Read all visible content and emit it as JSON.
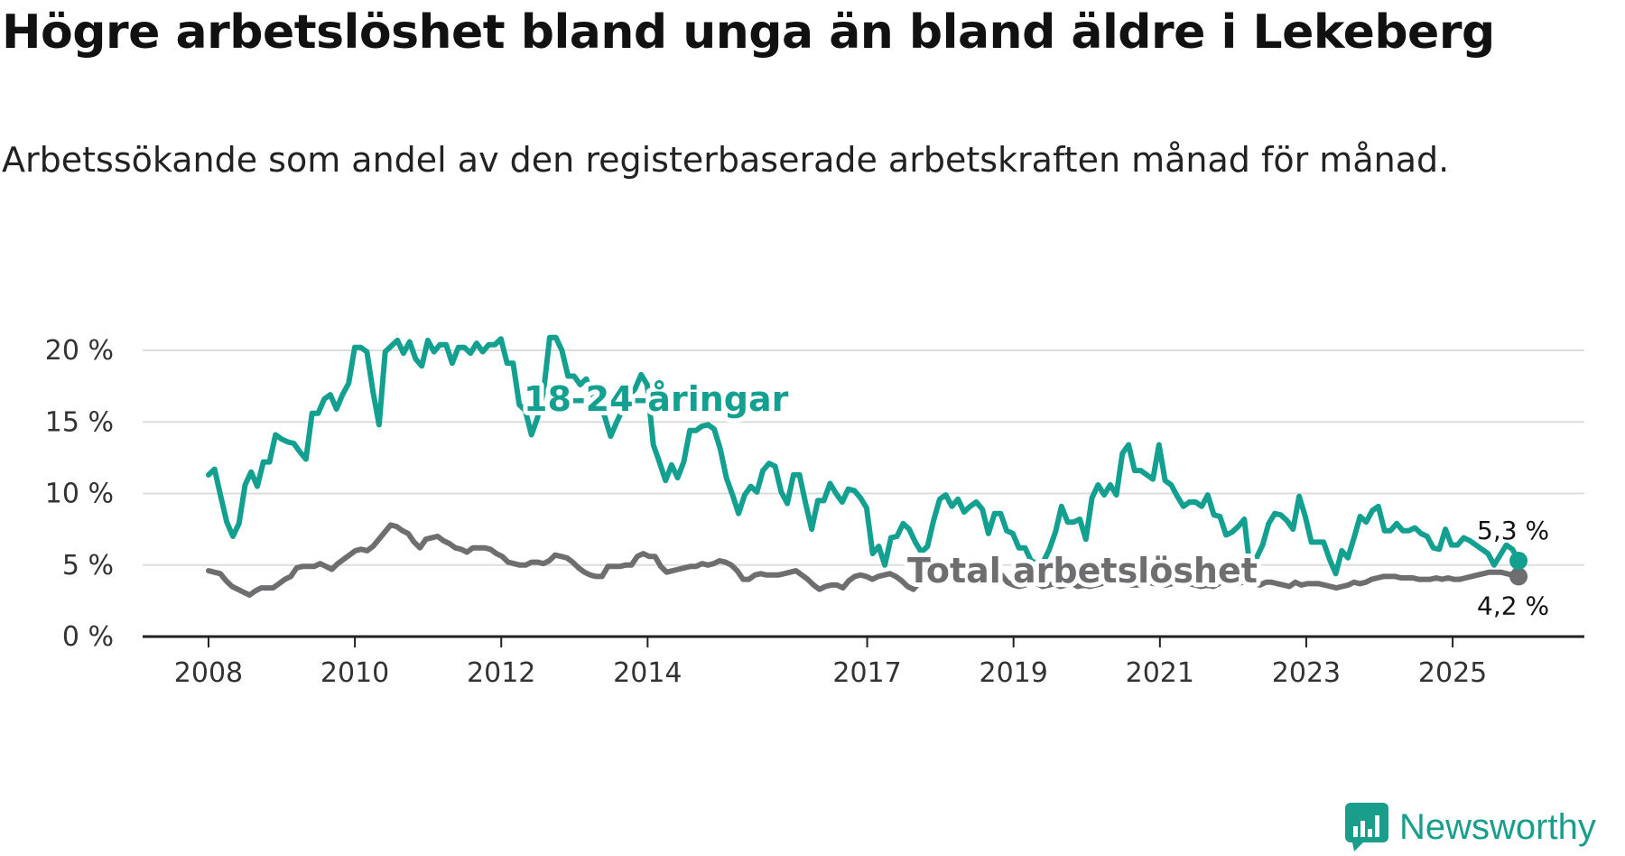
{
  "title": "Högre arbetslöshet bland unga än bland äldre i Lekeberg",
  "subtitle": "Arbetssökande som andel av den registerbaserade arbetskraften månad för månad.",
  "brand": "Newsworthy",
  "colors": {
    "youth": "#13a090",
    "total": "#6e6e70",
    "grid": "#dddddd",
    "axis": "#222222",
    "brand": "#1a9e8c"
  },
  "chart_data": {
    "type": "line",
    "title": "Högre arbetslöshet bland unga än bland äldre i Lekeberg",
    "xlabel": "",
    "ylabel": "",
    "ylim": [
      0,
      20
    ],
    "xlim": [
      2007.1,
      2026.8
    ],
    "y_ticks": [
      0,
      5,
      10,
      15,
      20
    ],
    "y_tick_labels": [
      "0 %",
      "5 %",
      "10 %",
      "15 %",
      "20 %"
    ],
    "x_ticks": [
      2008,
      2010,
      2012,
      2014,
      2017,
      2019,
      2021,
      2023,
      2025
    ],
    "x_tick_labels": [
      "2008",
      "2010",
      "2012",
      "2014",
      "2017",
      "2019",
      "2021",
      "2023",
      "2025"
    ],
    "grid": true,
    "series": [
      {
        "name": "18-24-åringar",
        "label": "18-24-åringar",
        "end_label": "5,3 %",
        "x_start": 2008.0,
        "x_end": 2025.9,
        "values": [
          11.3,
          11.7,
          9.8,
          8.0,
          7.0,
          7.9,
          10.6,
          11.5,
          10.5,
          12.2,
          12.2,
          14.1,
          13.8,
          13.6,
          13.5,
          12.9,
          12.4,
          15.6,
          15.6,
          16.6,
          16.9,
          15.9,
          16.9,
          17.7,
          20.2,
          20.2,
          19.9,
          17.1,
          14.8,
          19.9,
          20.3,
          20.7,
          19.8,
          20.6,
          19.4,
          18.9,
          20.7,
          19.9,
          20.4,
          20.4,
          19.1,
          20.2,
          20.2,
          19.8,
          20.5,
          19.9,
          20.4,
          20.4,
          20.8,
          19.1,
          19.1,
          16.2,
          15.8,
          14.1,
          15.3,
          17.2,
          20.9,
          20.9,
          20.0,
          18.2,
          18.2,
          17.6,
          18.0,
          16.9,
          16.3,
          15.4,
          14.0,
          15.0,
          15.9,
          16.8,
          17.3,
          18.3,
          17.6,
          13.4,
          12.2,
          10.9,
          12.0,
          11.1,
          12.2,
          14.4,
          14.4,
          14.7,
          14.8,
          14.5,
          13.1,
          11.1,
          9.9,
          8.6,
          9.9,
          10.5,
          10.1,
          11.6,
          12.1,
          11.9,
          10.1,
          9.3,
          11.3,
          11.3,
          9.3,
          7.5,
          9.5,
          9.5,
          10.7,
          10.0,
          9.4,
          10.3,
          10.2,
          9.7,
          9.0,
          5.8,
          6.3,
          5.0,
          6.9,
          7.0,
          7.9,
          7.5,
          6.6,
          5.9,
          6.3,
          8.1,
          9.6,
          9.9,
          9.1,
          9.6,
          8.7,
          9.1,
          9.4,
          8.9,
          7.2,
          8.6,
          8.6,
          7.4,
          7.2,
          6.2,
          6.2,
          5.3,
          5.1,
          5.2,
          6.1,
          7.3,
          9.1,
          8.0,
          8.0,
          8.2,
          6.8,
          9.7,
          10.6,
          9.9,
          10.6,
          9.9,
          12.8,
          13.4,
          11.6,
          11.6,
          11.3,
          11.0,
          13.4,
          10.9,
          10.6,
          9.8,
          9.1,
          9.4,
          9.4,
          9.1,
          9.9,
          8.5,
          8.4,
          7.1,
          7.3,
          7.7,
          8.2,
          4.5,
          5.5,
          6.4,
          7.9,
          8.6,
          8.5,
          8.1,
          7.5,
          9.8,
          8.4,
          6.6,
          6.6,
          6.6,
          5.4,
          4.4,
          6.0,
          5.5,
          6.9,
          8.4,
          8.0,
          8.8,
          9.1,
          7.4,
          7.4,
          7.9,
          7.4,
          7.4,
          7.6,
          7.2,
          7.0,
          6.2,
          6.1,
          7.5,
          6.4,
          6.4,
          6.9,
          6.7,
          6.4,
          6.1,
          5.8,
          5.0,
          5.7,
          6.4,
          6.1,
          5.3
        ]
      },
      {
        "name": "Total arbetslöshet",
        "label": "Total arbetslöshet",
        "end_label": "4,2 %",
        "x_start": 2008.0,
        "x_end": 2025.9,
        "values": [
          4.6,
          4.5,
          4.4,
          3.9,
          3.5,
          3.3,
          3.1,
          2.9,
          3.2,
          3.4,
          3.4,
          3.4,
          3.7,
          4.0,
          4.2,
          4.8,
          4.9,
          4.9,
          4.9,
          5.1,
          4.9,
          4.7,
          5.1,
          5.4,
          5.7,
          6.0,
          6.1,
          6.0,
          6.3,
          6.8,
          7.3,
          7.8,
          7.7,
          7.4,
          7.2,
          6.6,
          6.2,
          6.8,
          6.9,
          7.0,
          6.7,
          6.5,
          6.2,
          6.1,
          5.9,
          6.2,
          6.2,
          6.2,
          6.1,
          5.8,
          5.6,
          5.2,
          5.1,
          5.0,
          5.0,
          5.2,
          5.2,
          5.1,
          5.3,
          5.7,
          5.6,
          5.5,
          5.2,
          4.8,
          4.5,
          4.3,
          4.2,
          4.2,
          4.9,
          4.9,
          4.9,
          5.0,
          5.0,
          5.6,
          5.8,
          5.6,
          5.6,
          4.9,
          4.5,
          4.6,
          4.7,
          4.8,
          4.9,
          4.9,
          5.1,
          5.0,
          5.1,
          5.3,
          5.2,
          5.0,
          4.6,
          4.0,
          4.0,
          4.3,
          4.4,
          4.3,
          4.3,
          4.3,
          4.4,
          4.5,
          4.6,
          4.3,
          4.0,
          3.6,
          3.3,
          3.5,
          3.6,
          3.6,
          3.4,
          3.9,
          4.2,
          4.3,
          4.2,
          4.0,
          4.2,
          4.3,
          4.4,
          4.2,
          3.9,
          3.5,
          3.3,
          3.8,
          4.0,
          4.0,
          4.2,
          4.1,
          4.3,
          4.5,
          4.5,
          4.1,
          4.1,
          4.1,
          4.3,
          4.5,
          4.5,
          4.3,
          3.8,
          3.6,
          3.5,
          3.6,
          3.8,
          3.7,
          3.5,
          3.6,
          3.7,
          3.5,
          3.6,
          3.7,
          3.5,
          3.6,
          3.5,
          3.6,
          3.7,
          3.9,
          3.8,
          3.8,
          3.7,
          3.6,
          3.6,
          3.7,
          3.8,
          3.7,
          3.7,
          3.6,
          3.7,
          3.8,
          3.7,
          3.7,
          3.6,
          3.5,
          3.6,
          3.5,
          3.7,
          4.0,
          3.8,
          3.7,
          3.8,
          3.9,
          3.7,
          3.6,
          3.8,
          3.8,
          3.7,
          3.6,
          3.5,
          3.8,
          3.6,
          3.7,
          3.7,
          3.7,
          3.6,
          3.5,
          3.4,
          3.5,
          3.6,
          3.8,
          3.7,
          3.8,
          4.0,
          4.1,
          4.2,
          4.2,
          4.2,
          4.1,
          4.1,
          4.1,
          4.0,
          4.0,
          4.0,
          4.1,
          4.0,
          4.1,
          4.0,
          4.0,
          4.1,
          4.2,
          4.3,
          4.4,
          4.5,
          4.5,
          4.5,
          4.4,
          4.3,
          4.2
        ]
      }
    ]
  }
}
